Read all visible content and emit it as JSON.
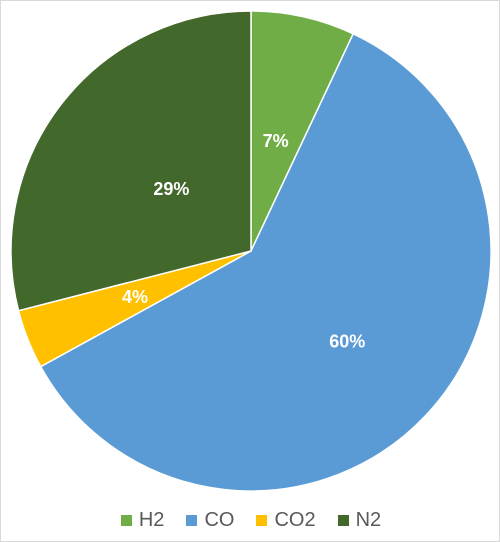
{
  "chart_data": {
    "type": "pie",
    "title": "",
    "slices": [
      {
        "name": "H2",
        "value": 7,
        "label": "7%",
        "color": "#70ad47"
      },
      {
        "name": "CO",
        "value": 60,
        "label": "60%",
        "color": "#5b9bd5"
      },
      {
        "name": "CO2",
        "value": 4,
        "label": "4%",
        "color": "#ffc000"
      },
      {
        "name": "N2",
        "value": 29,
        "label": "29%",
        "color": "#43682b"
      }
    ],
    "start_angle": "12 o'clock",
    "direction": "clockwise",
    "legend_position": "bottom",
    "label_color": "#ffffff"
  }
}
